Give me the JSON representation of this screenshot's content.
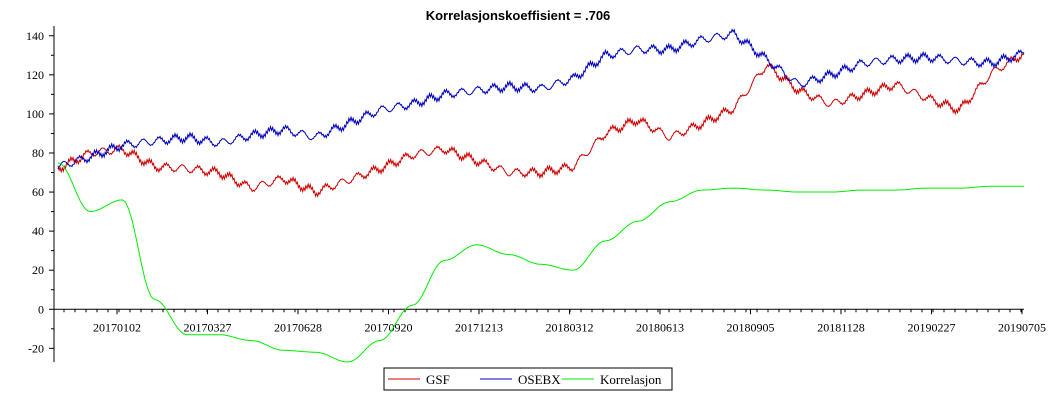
{
  "chart_data": {
    "type": "line",
    "title": "Korrelasjonskoeffisient = .706",
    "xlabel": "",
    "ylabel": "",
    "ylim": [
      -27,
      145
    ],
    "yticks": [
      -20,
      0,
      20,
      40,
      60,
      80,
      100,
      120,
      140
    ],
    "x_tick_labels": [
      "20170102",
      "20170327",
      "20170628",
      "20170920",
      "20171213",
      "20180312",
      "20180613",
      "20180905",
      "20181128",
      "20190227",
      "20190705"
    ],
    "grid": false,
    "legend_position": "bottom-center",
    "x": [
      "20161101",
      "20161201",
      "20170102",
      "20170201",
      "20170301",
      "20170327",
      "20170428",
      "20170601",
      "20170628",
      "20170801",
      "20170901",
      "20170920",
      "20171101",
      "20171213",
      "20180201",
      "20180312",
      "20180412",
      "20180601",
      "20180613",
      "20180801",
      "20180905",
      "20181001",
      "20181101",
      "20181128",
      "20190101",
      "20190201",
      "20190227",
      "20190401",
      "20190501",
      "20190601",
      "20190705"
    ],
    "series": [
      {
        "name": "GSF",
        "color": "#cc0000",
        "values": [
          72,
          80,
          82,
          73,
          72,
          70,
          62,
          67,
          60,
          66,
          72,
          79,
          82,
          76,
          70,
          70,
          73,
          90,
          97,
          88,
          95,
          103,
          125,
          112,
          105,
          110,
          115,
          108,
          102,
          121,
          131
        ]
      },
      {
        "name": "OSEBX",
        "color": "#0000bb",
        "values": [
          73,
          78,
          84,
          86,
          88,
          85,
          89,
          92,
          88,
          95,
          102,
          105,
          110,
          112,
          114,
          113,
          118,
          130,
          133,
          133,
          138,
          141,
          128,
          115,
          120,
          126,
          128,
          129,
          127,
          126,
          131
        ]
      },
      {
        "name": "Korrelasjon",
        "color": "#00ee00",
        "values": [
          75,
          50,
          56,
          5,
          -13,
          -13,
          -16,
          -21,
          -22,
          -27,
          -16,
          2,
          25,
          33,
          28,
          23,
          20,
          35,
          45,
          55,
          61,
          62,
          61,
          60,
          60,
          61,
          61,
          62,
          62,
          63,
          63
        ]
      }
    ]
  }
}
